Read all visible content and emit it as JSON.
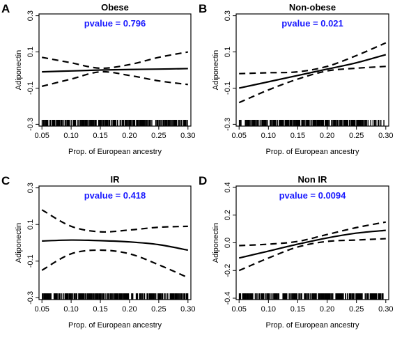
{
  "figure": {
    "panels": [
      "A",
      "B",
      "C",
      "D"
    ]
  },
  "chart_data": [
    {
      "type": "line",
      "panel_letter": "A",
      "title": "Obese",
      "annotation": "pvalue = 0.796",
      "annotation_color": "#1a1aff",
      "xlabel": "Prop. of European ancestry",
      "ylabel": "Adiponectin",
      "xlim": [
        0.045,
        0.305
      ],
      "ylim": [
        -0.31,
        0.31
      ],
      "x_ticks": [
        "0.05",
        "0.10",
        "0.15",
        "0.20",
        "0.25",
        "0.30"
      ],
      "y_ticks": [
        "-0.3",
        "-0.1",
        "0.1",
        "0.3"
      ],
      "y_tick_values": [
        -0.3,
        -0.1,
        0.1,
        0.3
      ],
      "rug": true,
      "x": [
        0.05,
        0.1,
        0.15,
        0.2,
        0.25,
        0.3
      ],
      "series": [
        {
          "style": "solid",
          "values": [
            -0.01,
            -0.005,
            0.0,
            0.003,
            0.005,
            0.008
          ]
        },
        {
          "style": "dashed",
          "values": [
            0.07,
            0.04,
            0.01,
            0.03,
            0.07,
            0.1
          ]
        },
        {
          "style": "dashed",
          "values": [
            -0.09,
            -0.05,
            -0.01,
            -0.03,
            -0.06,
            -0.08
          ]
        }
      ]
    },
    {
      "type": "line",
      "panel_letter": "B",
      "title": "Non-obese",
      "annotation": "pvalue = 0.021",
      "annotation_color": "#1a1aff",
      "xlabel": "Prop. of European ancestry",
      "ylabel": "Adiponectin",
      "xlim": [
        0.045,
        0.305
      ],
      "ylim": [
        -0.31,
        0.31
      ],
      "x_ticks": [
        "0.05",
        "0.10",
        "0.15",
        "0.20",
        "0.25",
        "0.30"
      ],
      "y_ticks": [
        "-0.3",
        "-0.1",
        "0.1",
        "0.3"
      ],
      "y_tick_values": [
        -0.3,
        -0.1,
        0.1,
        0.3
      ],
      "rug": true,
      "x": [
        0.05,
        0.1,
        0.15,
        0.2,
        0.25,
        0.3
      ],
      "series": [
        {
          "style": "solid",
          "values": [
            -0.1,
            -0.065,
            -0.03,
            0.005,
            0.04,
            0.085
          ]
        },
        {
          "style": "dashed",
          "values": [
            -0.02,
            -0.015,
            -0.01,
            0.02,
            0.08,
            0.15
          ]
        },
        {
          "style": "dashed",
          "values": [
            -0.18,
            -0.11,
            -0.05,
            -0.005,
            0.01,
            0.02
          ]
        }
      ]
    },
    {
      "type": "line",
      "panel_letter": "C",
      "title": "IR",
      "annotation": "pvalue = 0.418",
      "annotation_color": "#1a1aff",
      "xlabel": "Prop. of European ancestry",
      "ylabel": "Adiponectin",
      "xlim": [
        0.045,
        0.305
      ],
      "ylim": [
        -0.31,
        0.31
      ],
      "x_ticks": [
        "0.05",
        "0.10",
        "0.15",
        "0.20",
        "0.25",
        "0.30"
      ],
      "y_ticks": [
        "-0.3",
        "-0.1",
        "0.1",
        "0.3"
      ],
      "y_tick_values": [
        -0.3,
        -0.1,
        0.1,
        0.3
      ],
      "rug": true,
      "x": [
        0.05,
        0.1,
        0.15,
        0.2,
        0.25,
        0.3
      ],
      "series": [
        {
          "style": "solid",
          "values": [
            0.01,
            0.015,
            0.012,
            0.005,
            -0.01,
            -0.04
          ]
        },
        {
          "style": "dashed",
          "values": [
            0.18,
            0.09,
            0.06,
            0.07,
            0.085,
            0.09
          ]
        },
        {
          "style": "dashed",
          "values": [
            -0.15,
            -0.06,
            -0.04,
            -0.06,
            -0.12,
            -0.19
          ]
        }
      ]
    },
    {
      "type": "line",
      "panel_letter": "D",
      "title": "Non IR",
      "annotation": "pvalue = 0.0094",
      "annotation_color": "#1a1aff",
      "xlabel": "Prop. of European ancestry",
      "ylabel": "Adiponectin",
      "xlim": [
        0.045,
        0.305
      ],
      "ylim": [
        -0.41,
        0.41
      ],
      "x_ticks": [
        "0.05",
        "0.10",
        "0.15",
        "0.20",
        "0.25",
        "0.30"
      ],
      "y_ticks": [
        "-0.4",
        "-0.2",
        "0.0",
        "0.2",
        "0.4"
      ],
      "y_tick_values": [
        -0.4,
        -0.2,
        0.0,
        0.2,
        0.4
      ],
      "rug": true,
      "x": [
        0.05,
        0.1,
        0.15,
        0.2,
        0.25,
        0.3
      ],
      "series": [
        {
          "style": "solid",
          "values": [
            -0.11,
            -0.06,
            -0.01,
            0.035,
            0.07,
            0.09
          ]
        },
        {
          "style": "dashed",
          "values": [
            -0.02,
            -0.01,
            0.01,
            0.06,
            0.11,
            0.15
          ]
        },
        {
          "style": "dashed",
          "values": [
            -0.2,
            -0.11,
            -0.03,
            0.01,
            0.02,
            0.03
          ]
        }
      ]
    }
  ]
}
